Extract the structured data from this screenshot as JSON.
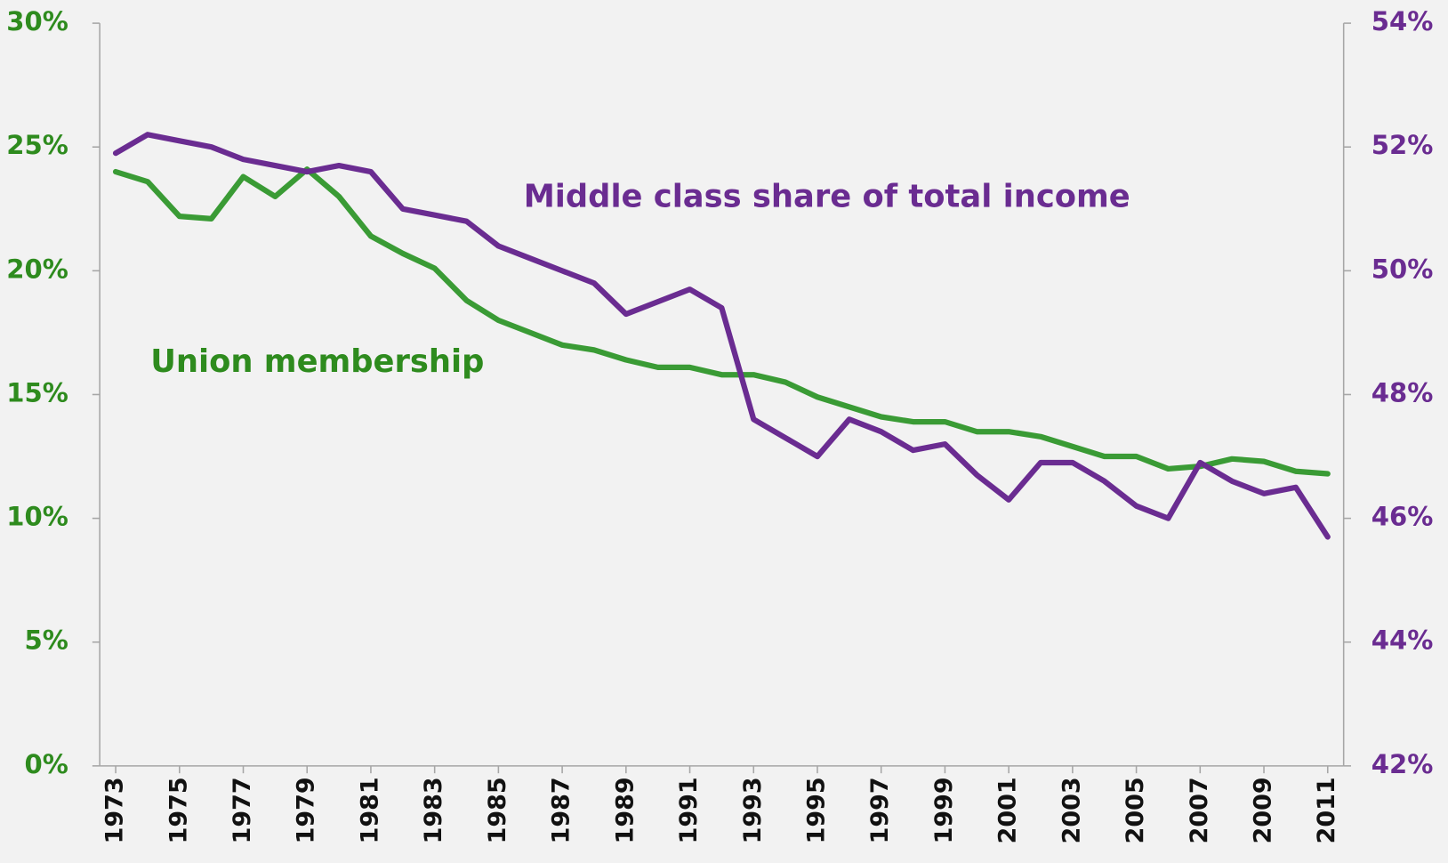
{
  "chart_data": {
    "type": "line",
    "x": [
      1973,
      1974,
      1975,
      1976,
      1977,
      1978,
      1979,
      1980,
      1981,
      1982,
      1983,
      1984,
      1985,
      1986,
      1987,
      1988,
      1989,
      1990,
      1991,
      1992,
      1993,
      1994,
      1995,
      1996,
      1997,
      1998,
      1999,
      2000,
      2001,
      2002,
      2003,
      2004,
      2005,
      2006,
      2007,
      2008,
      2009,
      2010,
      2011
    ],
    "xlim": [
      1972.5,
      2011.5
    ],
    "xticks": [
      1973,
      1975,
      1977,
      1979,
      1981,
      1983,
      1985,
      1987,
      1989,
      1991,
      1993,
      1995,
      1997,
      1999,
      2001,
      2003,
      2005,
      2007,
      2009,
      2011
    ],
    "ylim": [
      0,
      30
    ],
    "yticks": [
      {
        "value": 0,
        "label": "0%"
      },
      {
        "value": 5,
        "label": "5%"
      },
      {
        "value": 10,
        "label": "10%"
      },
      {
        "value": 15,
        "label": "15%"
      },
      {
        "value": 20,
        "label": "20%"
      },
      {
        "value": 25,
        "label": "25%"
      },
      {
        "value": 30,
        "label": "30%"
      }
    ],
    "y2lim": [
      42,
      54
    ],
    "y2ticks": [
      {
        "value": 42,
        "label": "42%"
      },
      {
        "value": 44,
        "label": "44%"
      },
      {
        "value": 46,
        "label": "46%"
      },
      {
        "value": 48,
        "label": "48%"
      },
      {
        "value": 50,
        "label": "50%"
      },
      {
        "value": 52,
        "label": "52%"
      },
      {
        "value": 54,
        "label": "54%"
      }
    ],
    "series": [
      {
        "name": "Union membership",
        "color": "#3a9b35",
        "values": [
          24.0,
          23.6,
          22.2,
          22.1,
          23.8,
          23.0,
          24.1,
          23.0,
          21.4,
          20.7,
          20.1,
          18.8,
          18.0,
          17.5,
          17.0,
          16.8,
          16.4,
          16.1,
          16.1,
          15.8,
          15.8,
          15.5,
          14.9,
          14.5,
          14.1,
          13.9,
          13.9,
          13.5,
          13.5,
          13.3,
          12.9,
          12.5,
          12.5,
          12.0,
          12.1,
          12.4,
          12.3,
          11.9,
          11.8
        ]
      },
      {
        "name": "Middle class share of total income",
        "color": "#6a2c91",
        "axis": "y2",
        "values": [
          51.9,
          52.2,
          52.1,
          52.0,
          51.8,
          51.7,
          51.6,
          51.7,
          51.6,
          51.0,
          50.9,
          50.8,
          50.4,
          50.2,
          50.0,
          49.8,
          49.3,
          49.5,
          49.7,
          49.4,
          47.6,
          47.3,
          47.0,
          47.6,
          47.4,
          47.1,
          47.2,
          46.7,
          46.3,
          46.9,
          46.9,
          46.6,
          46.2,
          46.0,
          46.9,
          46.6,
          46.4,
          46.5,
          45.7
        ]
      }
    ]
  }
}
